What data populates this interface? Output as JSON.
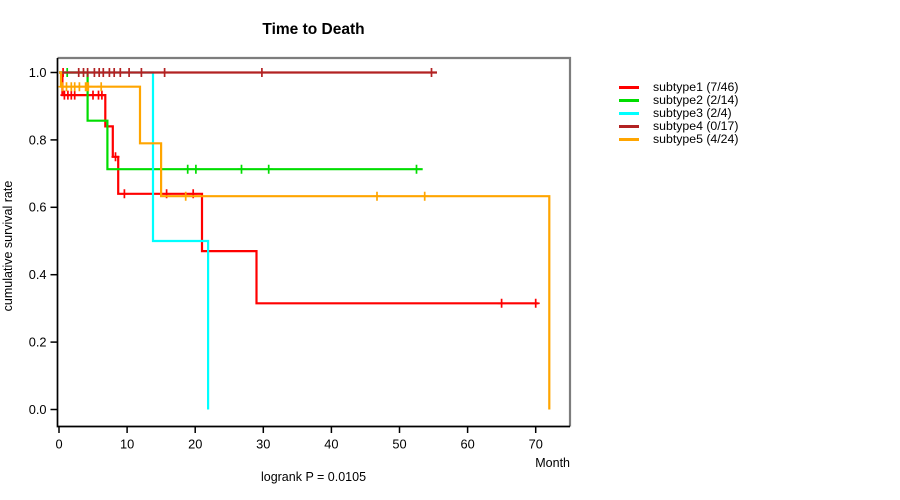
{
  "chart_data": {
    "type": "line",
    "subtype": "kaplan-meier-step-curves",
    "title": "Time to Death",
    "xlabel": "Month",
    "ylabel": "cumulative survival rate",
    "annotation": "logrank P = 0.0105",
    "x_ticks": [
      "0",
      "10",
      "20",
      "30",
      "40",
      "50",
      "60",
      "70"
    ],
    "y_ticks": [
      "0.0",
      "0.2",
      "0.4",
      "0.6",
      "0.8",
      "1.0"
    ],
    "xlim": [
      0,
      75
    ],
    "ylim": [
      0,
      1.05
    ],
    "grid": false,
    "legend_position": "right-outside",
    "series": [
      {
        "name": "subtype1",
        "label": "subtype1 (7/46)",
        "color": "#ff0000",
        "steps": [
          [
            0,
            1.0
          ],
          [
            0.5,
            0.933
          ],
          [
            6.8,
            0.84
          ],
          [
            7.9,
            0.75
          ],
          [
            8.7,
            0.64
          ],
          [
            21.0,
            0.47
          ],
          [
            29.0,
            0.315
          ],
          [
            70.4,
            0.315
          ]
        ],
        "censors": [
          [
            0.6,
            1.0
          ],
          [
            0.8,
            0.933
          ],
          [
            1.3,
            0.933
          ],
          [
            1.8,
            0.933
          ],
          [
            2.3,
            0.933
          ],
          [
            5.0,
            0.933
          ],
          [
            5.8,
            0.933
          ],
          [
            6.3,
            0.933
          ],
          [
            8.3,
            0.75
          ],
          [
            9.6,
            0.64
          ],
          [
            15.8,
            0.64
          ],
          [
            19.7,
            0.64
          ],
          [
            65.0,
            0.315
          ],
          [
            70.0,
            0.315
          ]
        ]
      },
      {
        "name": "subtype2",
        "label": "subtype2 (2/14)",
        "color": "#00dd00",
        "steps": [
          [
            0,
            1.0
          ],
          [
            4.2,
            0.857
          ],
          [
            7.1,
            0.713
          ],
          [
            53.4,
            0.713
          ]
        ],
        "censors": [
          [
            1.2,
            1.0
          ],
          [
            18.9,
            0.713
          ],
          [
            20.1,
            0.713
          ],
          [
            26.8,
            0.713
          ],
          [
            30.8,
            0.713
          ],
          [
            52.5,
            0.713
          ]
        ]
      },
      {
        "name": "subtype3",
        "label": "subtype3 (2/4)",
        "color": "#00ffff",
        "steps": [
          [
            0,
            1.0
          ],
          [
            13.8,
            0.5
          ],
          [
            21.9,
            0.0
          ]
        ],
        "censors": []
      },
      {
        "name": "subtype4",
        "label": "subtype4 (0/17)",
        "color": "#b22222",
        "steps": [
          [
            0,
            1.0
          ],
          [
            55.5,
            1.0
          ]
        ],
        "censors": [
          [
            2.9,
            1.0
          ],
          [
            3.6,
            1.0
          ],
          [
            4.2,
            1.0
          ],
          [
            5.2,
            1.0
          ],
          [
            5.9,
            1.0
          ],
          [
            6.5,
            1.0
          ],
          [
            7.4,
            1.0
          ],
          [
            8.1,
            1.0
          ],
          [
            9.0,
            1.0
          ],
          [
            10.3,
            1.0
          ],
          [
            12.1,
            1.0
          ],
          [
            15.5,
            1.0
          ],
          [
            29.8,
            1.0
          ],
          [
            54.7,
            1.0
          ]
        ]
      },
      {
        "name": "subtype5",
        "label": "subtype5 (4/24)",
        "color": "#ffa500",
        "steps": [
          [
            0,
            1.0
          ],
          [
            0.3,
            0.958
          ],
          [
            11.9,
            0.79
          ],
          [
            15.0,
            0.633
          ],
          [
            72.0,
            0.0
          ]
        ],
        "censors": [
          [
            0.5,
            0.958
          ],
          [
            1.1,
            0.958
          ],
          [
            1.8,
            0.958
          ],
          [
            2.3,
            0.958
          ],
          [
            3.0,
            0.958
          ],
          [
            3.9,
            0.958
          ],
          [
            4.1,
            0.958
          ],
          [
            4.3,
            0.958
          ],
          [
            6.2,
            0.958
          ],
          [
            18.6,
            0.633
          ],
          [
            46.7,
            0.633
          ],
          [
            53.7,
            0.633
          ]
        ]
      }
    ]
  }
}
